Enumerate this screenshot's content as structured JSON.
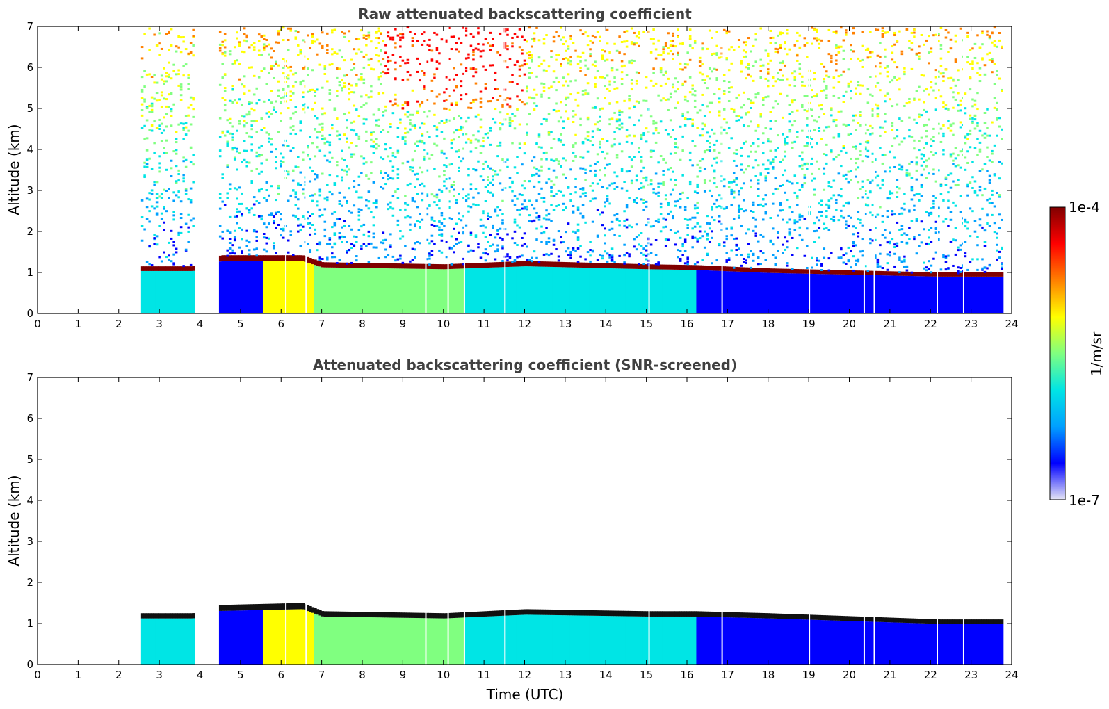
{
  "chart_data": [
    {
      "type": "heatmap",
      "title": "Raw attenuated backscattering coefficient",
      "xlabel": "",
      "ylabel": "Altitude (km)",
      "xlim": [
        0,
        24
      ],
      "ylim": [
        0,
        7
      ],
      "x_ticks": [
        "0",
        "1",
        "2",
        "3",
        "4",
        "5",
        "6",
        "7",
        "8",
        "9",
        "10",
        "11",
        "12",
        "13",
        "14",
        "15",
        "16",
        "17",
        "18",
        "19",
        "20",
        "21",
        "22",
        "23",
        "24"
      ],
      "y_ticks": [
        "0",
        "1",
        "2",
        "3",
        "4",
        "5",
        "6",
        "7"
      ],
      "data_start_time": 2.55,
      "data_end_time": 23.75,
      "boundary_layer_top_km": [
        {
          "t": 2.55,
          "z": 1.15
        },
        {
          "t": 3.8,
          "z": 1.15
        },
        {
          "t": 4.5,
          "z": 1.42
        },
        {
          "t": 6.5,
          "z": 1.42
        },
        {
          "t": 7.0,
          "z": 1.25
        },
        {
          "t": 10.0,
          "z": 1.2
        },
        {
          "t": 12.0,
          "z": 1.28
        },
        {
          "t": 15.0,
          "z": 1.2
        },
        {
          "t": 16.2,
          "z": 1.18
        },
        {
          "t": 18.0,
          "z": 1.1
        },
        {
          "t": 22.2,
          "z": 1.0
        }
      ],
      "data_gaps_utc": [
        6.1,
        6.6,
        9.55,
        10.1,
        10.5,
        11.5,
        15.05,
        16.85,
        19.0,
        20.35,
        20.6,
        22.15,
        22.8
      ]
    },
    {
      "type": "heatmap",
      "title": "Attenuated backscattering coefficient (SNR-screened)",
      "xlabel": "Time (UTC)",
      "ylabel": "Altitude (km)",
      "xlim": [
        0,
        24
      ],
      "ylim": [
        0,
        7
      ],
      "x_ticks": [
        "0",
        "1",
        "2",
        "3",
        "4",
        "5",
        "6",
        "7",
        "8",
        "9",
        "10",
        "11",
        "12",
        "13",
        "14",
        "15",
        "16",
        "17",
        "18",
        "19",
        "20",
        "21",
        "22",
        "23",
        "24"
      ],
      "y_ticks": [
        "0",
        "1",
        "2",
        "3",
        "4",
        "5",
        "6",
        "7"
      ],
      "data_start_time": 2.55,
      "data_end_time": 23.75,
      "boundary_layer_top_km": [
        {
          "t": 2.55,
          "z": 1.25
        },
        {
          "t": 3.8,
          "z": 1.25
        },
        {
          "t": 4.4,
          "z": 1.45
        },
        {
          "t": 6.5,
          "z": 1.5
        },
        {
          "t": 7.0,
          "z": 1.3
        },
        {
          "t": 10.0,
          "z": 1.25
        },
        {
          "t": 12.0,
          "z": 1.35
        },
        {
          "t": 15.0,
          "z": 1.3
        },
        {
          "t": 16.2,
          "z": 1.3
        },
        {
          "t": 18.0,
          "z": 1.25
        },
        {
          "t": 22.2,
          "z": 1.1
        }
      ],
      "data_gaps_utc": [
        6.1,
        6.6,
        9.55,
        10.1,
        10.5,
        11.5,
        15.05,
        16.85,
        19.0,
        20.35,
        20.6,
        22.15,
        22.8
      ]
    }
  ],
  "colorbar": {
    "label": "1/m/sr",
    "max_label": "1e-4",
    "min_label": "1e-7",
    "scale": "log",
    "colors": [
      "#e6e6f5",
      "#0000ff",
      "#00a0ff",
      "#00e5e5",
      "#80ff80",
      "#ffff00",
      "#ff8000",
      "#ff0000",
      "#800000"
    ]
  }
}
